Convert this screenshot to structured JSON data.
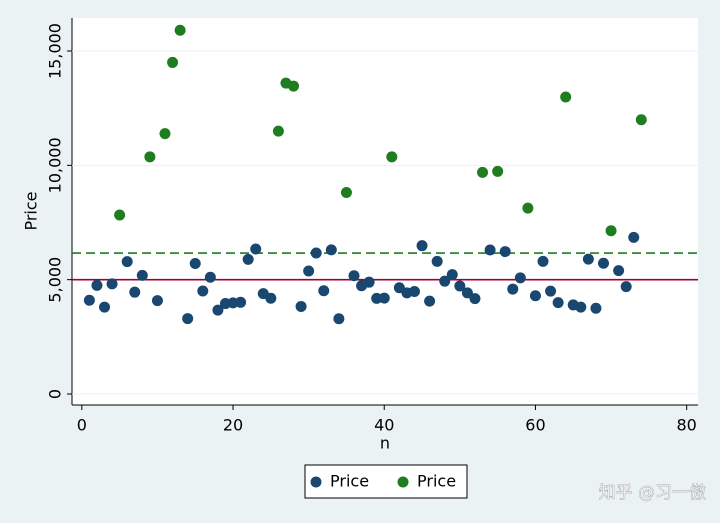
{
  "chart_data": {
    "type": "scatter",
    "x_label": "n",
    "y_label": "Price",
    "x": [
      1,
      2,
      3,
      4,
      5,
      6,
      7,
      8,
      9,
      10,
      11,
      12,
      13,
      14,
      15,
      16,
      17,
      18,
      19,
      20,
      21,
      22,
      23,
      24,
      25,
      26,
      27,
      28,
      29,
      30,
      31,
      32,
      33,
      34,
      35,
      36,
      37,
      38,
      39,
      40,
      41,
      42,
      43,
      44,
      45,
      46,
      47,
      48,
      49,
      50,
      51,
      52,
      53,
      54,
      55,
      56,
      57,
      58,
      59,
      60,
      61,
      62,
      63,
      64,
      65,
      66,
      67,
      68,
      69,
      70,
      71,
      72,
      73,
      74
    ],
    "series": [
      {
        "name": "Price",
        "color": "#1a476f",
        "values": [
          4099,
          4749,
          3799,
          4816,
          null,
          5788,
          4453,
          5189,
          null,
          4082,
          null,
          null,
          null,
          3299,
          5705,
          4504,
          5104,
          3667,
          3955,
          3984,
          4010,
          5886,
          6342,
          4389,
          4187,
          null,
          null,
          null,
          3829,
          5379,
          6165,
          4516,
          6303,
          3291,
          null,
          5172,
          4733,
          4890,
          4181,
          4195,
          null,
          4647,
          4425,
          4482,
          6486,
          4060,
          5798,
          4934,
          5222,
          4723,
          4424,
          4172,
          null,
          6295,
          null,
          6229,
          4589,
          5079,
          null,
          4296,
          5799,
          4499,
          3995,
          null,
          3895,
          3798,
          5899,
          3748,
          5719,
          null,
          5397,
          4697,
          6850,
          null
        ]
      },
      {
        "name": "Price",
        "color": "#1e7d1e",
        "values": [
          null,
          null,
          null,
          null,
          7827,
          null,
          null,
          null,
          10372,
          null,
          11385,
          14500,
          15906,
          null,
          null,
          null,
          null,
          null,
          null,
          null,
          null,
          null,
          null,
          null,
          null,
          11497,
          13594,
          13466,
          null,
          null,
          null,
          null,
          null,
          null,
          8814,
          null,
          null,
          null,
          null,
          null,
          10371,
          null,
          null,
          null,
          null,
          null,
          null,
          null,
          null,
          null,
          null,
          null,
          9690,
          null,
          9735,
          null,
          null,
          null,
          8129,
          null,
          null,
          null,
          null,
          12990,
          null,
          null,
          null,
          null,
          null,
          7140,
          null,
          null,
          null,
          11995
        ]
      }
    ],
    "reference_lines": [
      {
        "value": 5000,
        "color": "#a0003a",
        "style": "solid"
      },
      {
        "value": 6165,
        "color": "#1e7d1e",
        "style": "dashed"
      }
    ],
    "xlim": [
      -1.3,
      81.5
    ],
    "xticks": [
      0,
      20,
      40,
      60,
      80
    ],
    "ylim": [
      -481,
      16443
    ],
    "yticks": [
      0,
      {
        "value": 5000,
        "label": "5,000"
      },
      {
        "value": 10000,
        "label": "10,000"
      },
      {
        "value": 15000,
        "label": "15,000"
      }
    ],
    "grid": true,
    "legend": "bottom",
    "watermark": "知乎 @习一傲"
  }
}
